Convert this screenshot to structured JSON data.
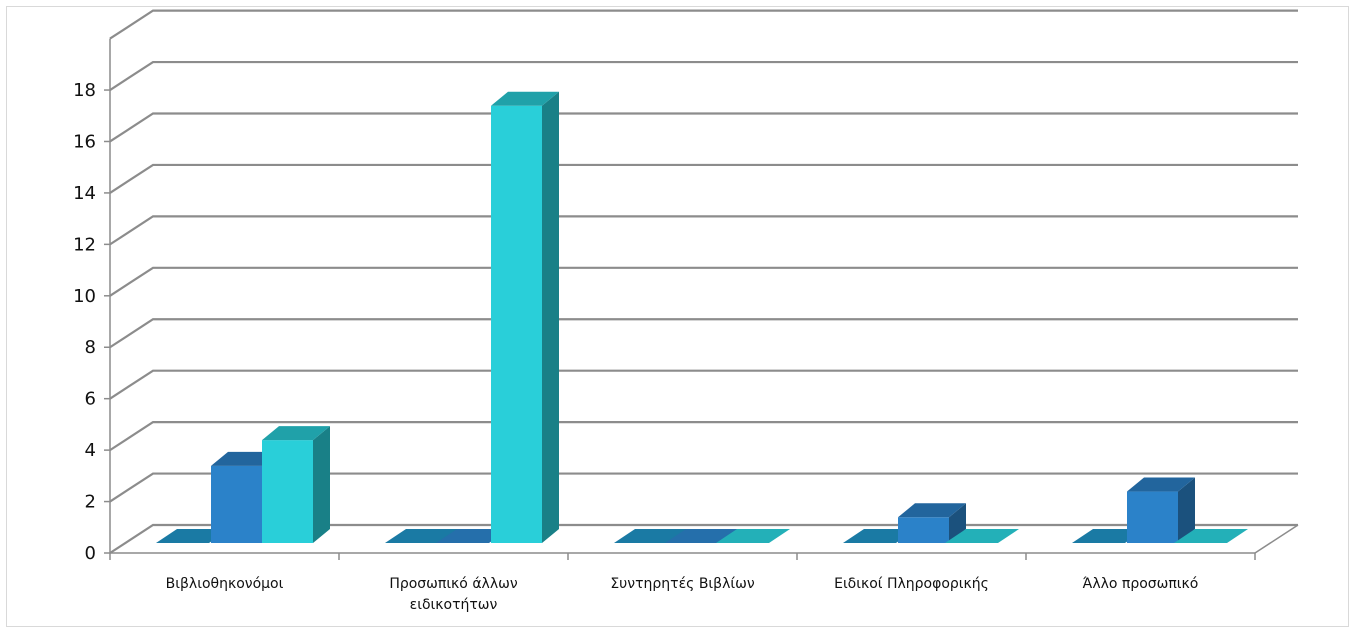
{
  "chart_data": {
    "type": "bar",
    "title": "",
    "xlabel": "",
    "ylabel": "",
    "ylim": [
      0,
      18
    ],
    "yticks": [
      0,
      2,
      4,
      6,
      8,
      10,
      12,
      14,
      16,
      18
    ],
    "grid": true,
    "legend": "none",
    "style": "3d-clustered-column",
    "categories": [
      [
        "Βιβλιοθηκονόμοι"
      ],
      [
        "Προσωπικό άλλων",
        "ειδικοτήτων"
      ],
      [
        "Συντηρητές Βιβλίων"
      ],
      [
        "Ειδικοί Πληροφορικής"
      ],
      [
        "Άλλο προσωπικό"
      ]
    ],
    "series": [
      {
        "values": [
          0,
          0,
          0,
          0,
          0
        ],
        "color": "#1e8fc1"
      },
      {
        "values": [
          3,
          0,
          0,
          1,
          2
        ],
        "color": "#2b82c9"
      },
      {
        "values": [
          4,
          17,
          0,
          0,
          0
        ],
        "color": "#29cfd9"
      }
    ]
  }
}
